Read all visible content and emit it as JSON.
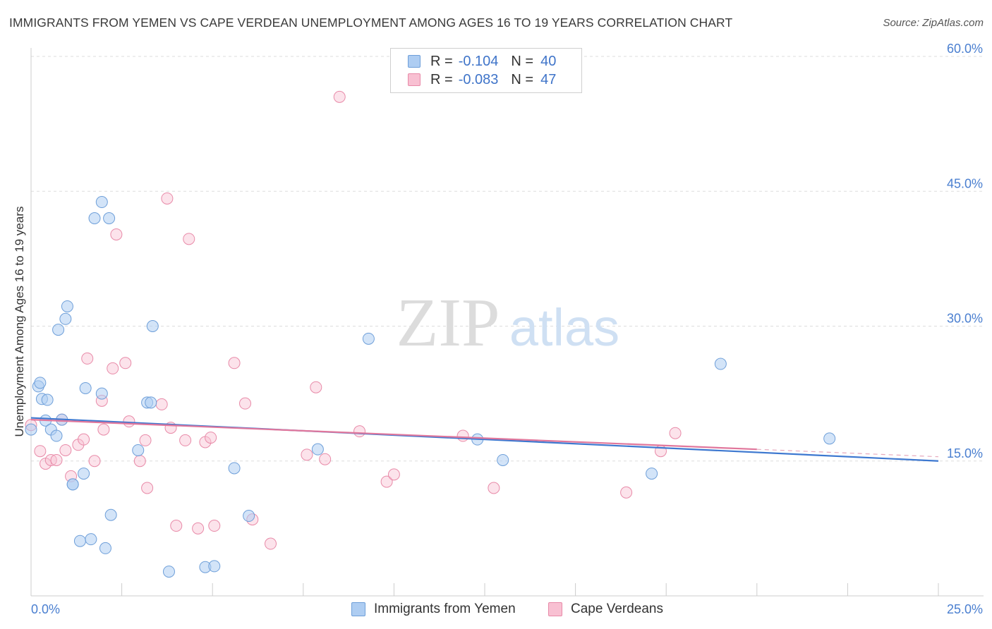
{
  "title": "IMMIGRANTS FROM YEMEN VS CAPE VERDEAN UNEMPLOYMENT AMONG AGES 16 TO 19 YEARS CORRELATION CHART",
  "source": "Source: ZipAtlas.com",
  "watermark": {
    "zip": "ZIP",
    "atlas": "atlas"
  },
  "legend": {
    "r_label": "R =",
    "n_label": "N =",
    "series": [
      {
        "name": "Immigrants from Yemen",
        "r": "-0.104",
        "n": "40",
        "color": "#6e9fd9",
        "fill": "#aecdf2"
      },
      {
        "name": "Cape Verdeans",
        "r": "-0.083",
        "n": "47",
        "color": "#e88aa8",
        "fill": "#f8c0d2"
      }
    ]
  },
  "chart_data": {
    "type": "scatter",
    "title": "IMMIGRANTS FROM YEMEN VS CAPE VERDEAN UNEMPLOYMENT AMONG AGES 16 TO 19 YEARS CORRELATION CHART",
    "xlabel": "",
    "ylabel": "Unemployment Among Ages 16 to 19 years",
    "xlim": [
      0,
      25
    ],
    "ylim": [
      0,
      60
    ],
    "x_tick_labels": [
      "0.0%",
      "25.0%"
    ],
    "y_ticks": [
      15,
      30,
      45,
      60
    ],
    "y_tick_labels": [
      "15.0%",
      "30.0%",
      "45.0%",
      "60.0%"
    ],
    "grid": true,
    "series": [
      {
        "name": "Immigrants from Yemen",
        "color": "#4a86d8",
        "trend": {
          "x": [
            0,
            25
          ],
          "y": [
            19.8,
            15.0
          ]
        },
        "points": [
          [
            0.0,
            18.5
          ],
          [
            0.2,
            23.3
          ],
          [
            0.25,
            23.7
          ],
          [
            0.3,
            21.9
          ],
          [
            0.45,
            21.8
          ],
          [
            0.4,
            19.5
          ],
          [
            0.55,
            18.5
          ],
          [
            0.7,
            17.8
          ],
          [
            0.75,
            29.6
          ],
          [
            0.85,
            19.6
          ],
          [
            0.95,
            30.8
          ],
          [
            1.0,
            32.2
          ],
          [
            1.15,
            12.4
          ],
          [
            1.15,
            12.4
          ],
          [
            1.35,
            6.1
          ],
          [
            1.45,
            13.6
          ],
          [
            1.5,
            23.1
          ],
          [
            1.65,
            6.3
          ],
          [
            1.75,
            42.0
          ],
          [
            1.95,
            22.5
          ],
          [
            1.95,
            43.8
          ],
          [
            2.05,
            5.3
          ],
          [
            2.15,
            42.0
          ],
          [
            2.2,
            9.0
          ],
          [
            2.95,
            16.2
          ],
          [
            3.2,
            21.5
          ],
          [
            3.3,
            21.5
          ],
          [
            3.35,
            30.0
          ],
          [
            3.8,
            2.7
          ],
          [
            4.8,
            3.2
          ],
          [
            5.05,
            3.3
          ],
          [
            5.6,
            14.2
          ],
          [
            6.0,
            8.9
          ],
          [
            7.9,
            16.3
          ],
          [
            9.3,
            28.6
          ],
          [
            12.3,
            17.4
          ],
          [
            13.0,
            15.1
          ],
          [
            17.1,
            13.6
          ],
          [
            19.0,
            25.8
          ],
          [
            22.0,
            17.5
          ]
        ]
      },
      {
        "name": "Cape Verdeans",
        "color": "#e87aa0",
        "trend": {
          "x": [
            0,
            20
          ],
          "y": [
            19.6,
            16.3
          ]
        },
        "points": [
          [
            0.0,
            19.0
          ],
          [
            0.25,
            16.1
          ],
          [
            0.4,
            14.7
          ],
          [
            0.55,
            15.1
          ],
          [
            0.7,
            15.1
          ],
          [
            0.85,
            19.6
          ],
          [
            0.95,
            16.2
          ],
          [
            1.1,
            13.3
          ],
          [
            1.3,
            16.8
          ],
          [
            1.45,
            17.4
          ],
          [
            1.55,
            26.4
          ],
          [
            1.75,
            15.0
          ],
          [
            1.95,
            21.7
          ],
          [
            2.0,
            18.5
          ],
          [
            2.25,
            25.3
          ],
          [
            2.35,
            40.2
          ],
          [
            2.6,
            25.9
          ],
          [
            2.7,
            19.4
          ],
          [
            3.0,
            15.0
          ],
          [
            3.15,
            17.3
          ],
          [
            3.2,
            12.0
          ],
          [
            3.6,
            21.3
          ],
          [
            3.75,
            44.2
          ],
          [
            3.85,
            18.7
          ],
          [
            4.0,
            7.8
          ],
          [
            4.25,
            17.3
          ],
          [
            4.35,
            39.7
          ],
          [
            4.6,
            7.5
          ],
          [
            4.8,
            17.1
          ],
          [
            4.95,
            17.6
          ],
          [
            5.05,
            7.8
          ],
          [
            5.6,
            25.9
          ],
          [
            5.9,
            21.4
          ],
          [
            6.1,
            8.5
          ],
          [
            6.6,
            5.8
          ],
          [
            7.6,
            15.7
          ],
          [
            7.85,
            23.2
          ],
          [
            8.1,
            15.2
          ],
          [
            8.5,
            55.5
          ],
          [
            9.05,
            18.3
          ],
          [
            9.8,
            12.7
          ],
          [
            10.0,
            13.5
          ],
          [
            11.9,
            17.8
          ],
          [
            12.75,
            12.0
          ],
          [
            16.4,
            11.5
          ],
          [
            17.35,
            16.1
          ],
          [
            17.75,
            18.1
          ]
        ]
      }
    ]
  }
}
